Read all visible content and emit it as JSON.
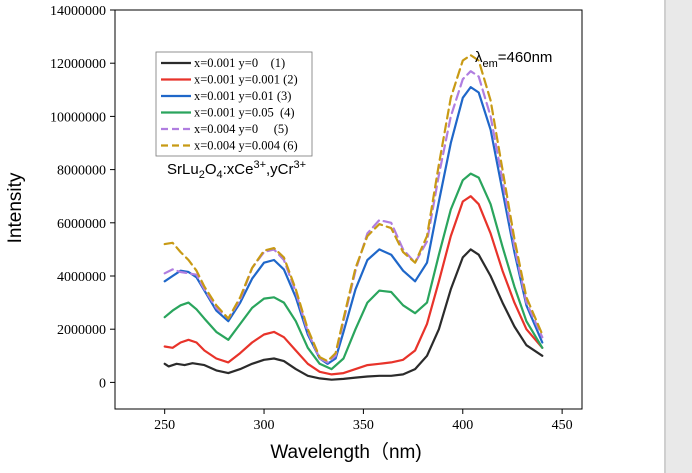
{
  "chart_data": {
    "type": "line",
    "xlabel": "Wavelength（nm)",
    "ylabel": "Intensity",
    "xlim": [
      225,
      460
    ],
    "ylim": [
      -1000000,
      14000000
    ],
    "xticks": [
      250,
      300,
      350,
      400,
      450
    ],
    "yticks": [
      0,
      2000000,
      4000000,
      6000000,
      8000000,
      10000000,
      12000000,
      14000000
    ],
    "annotations": {
      "compound": "SrLu2O4:xCe3+,yCr3+",
      "lambda": "λem=460nm"
    },
    "legend_position": "top-left",
    "grid": false,
    "series": [
      {
        "name": "x=0.001 y=0    (1)",
        "color": "#2b2b2b",
        "dash": "solid",
        "points": [
          [
            250,
            700000
          ],
          [
            252,
            600000
          ],
          [
            256,
            700000
          ],
          [
            260,
            650000
          ],
          [
            264,
            720000
          ],
          [
            270,
            650000
          ],
          [
            276,
            450000
          ],
          [
            282,
            350000
          ],
          [
            288,
            500000
          ],
          [
            294,
            700000
          ],
          [
            300,
            850000
          ],
          [
            305,
            900000
          ],
          [
            310,
            800000
          ],
          [
            316,
            500000
          ],
          [
            322,
            250000
          ],
          [
            328,
            150000
          ],
          [
            334,
            100000
          ],
          [
            340,
            130000
          ],
          [
            346,
            180000
          ],
          [
            352,
            220000
          ],
          [
            358,
            250000
          ],
          [
            364,
            250000
          ],
          [
            370,
            300000
          ],
          [
            376,
            500000
          ],
          [
            382,
            1000000
          ],
          [
            388,
            2000000
          ],
          [
            394,
            3500000
          ],
          [
            400,
            4700000
          ],
          [
            404,
            5000000
          ],
          [
            408,
            4800000
          ],
          [
            414,
            4000000
          ],
          [
            420,
            3000000
          ],
          [
            426,
            2100000
          ],
          [
            432,
            1400000
          ],
          [
            440,
            1000000
          ]
        ]
      },
      {
        "name": "x=0.001 y=0.001 (2)",
        "color": "#e8332a",
        "dash": "solid",
        "points": [
          [
            250,
            1350000
          ],
          [
            254,
            1300000
          ],
          [
            258,
            1500000
          ],
          [
            262,
            1600000
          ],
          [
            266,
            1500000
          ],
          [
            270,
            1200000
          ],
          [
            276,
            900000
          ],
          [
            282,
            750000
          ],
          [
            288,
            1100000
          ],
          [
            294,
            1500000
          ],
          [
            300,
            1800000
          ],
          [
            305,
            1900000
          ],
          [
            310,
            1700000
          ],
          [
            316,
            1200000
          ],
          [
            322,
            700000
          ],
          [
            328,
            400000
          ],
          [
            334,
            300000
          ],
          [
            340,
            350000
          ],
          [
            346,
            500000
          ],
          [
            352,
            650000
          ],
          [
            358,
            700000
          ],
          [
            364,
            750000
          ],
          [
            370,
            850000
          ],
          [
            376,
            1200000
          ],
          [
            382,
            2200000
          ],
          [
            388,
            3800000
          ],
          [
            394,
            5500000
          ],
          [
            400,
            6800000
          ],
          [
            404,
            7000000
          ],
          [
            408,
            6700000
          ],
          [
            414,
            5600000
          ],
          [
            420,
            4200000
          ],
          [
            426,
            3000000
          ],
          [
            432,
            2000000
          ],
          [
            440,
            1300000
          ]
        ]
      },
      {
        "name": "x=0.001 y=0.01 (3)",
        "color": "#1f67c9",
        "dash": "solid",
        "points": [
          [
            250,
            3800000
          ],
          [
            254,
            4000000
          ],
          [
            258,
            4200000
          ],
          [
            262,
            4150000
          ],
          [
            266,
            3950000
          ],
          [
            270,
            3450000
          ],
          [
            276,
            2700000
          ],
          [
            282,
            2300000
          ],
          [
            288,
            3000000
          ],
          [
            294,
            3900000
          ],
          [
            300,
            4500000
          ],
          [
            305,
            4600000
          ],
          [
            310,
            4250000
          ],
          [
            316,
            3200000
          ],
          [
            322,
            1800000
          ],
          [
            328,
            900000
          ],
          [
            332,
            700000
          ],
          [
            336,
            900000
          ],
          [
            340,
            1900000
          ],
          [
            346,
            3500000
          ],
          [
            352,
            4600000
          ],
          [
            358,
            5000000
          ],
          [
            364,
            4800000
          ],
          [
            370,
            4200000
          ],
          [
            376,
            3800000
          ],
          [
            382,
            4500000
          ],
          [
            388,
            6800000
          ],
          [
            394,
            9000000
          ],
          [
            400,
            10700000
          ],
          [
            404,
            11100000
          ],
          [
            408,
            10900000
          ],
          [
            414,
            9500000
          ],
          [
            420,
            7200000
          ],
          [
            426,
            4900000
          ],
          [
            432,
            2900000
          ],
          [
            440,
            1500000
          ]
        ]
      },
      {
        "name": "x=0.001 y=0.05  (4)",
        "color": "#2aa55d",
        "dash": "solid",
        "points": [
          [
            250,
            2450000
          ],
          [
            254,
            2700000
          ],
          [
            258,
            2900000
          ],
          [
            262,
            3000000
          ],
          [
            266,
            2750000
          ],
          [
            270,
            2400000
          ],
          [
            276,
            1900000
          ],
          [
            282,
            1600000
          ],
          [
            288,
            2200000
          ],
          [
            294,
            2800000
          ],
          [
            300,
            3150000
          ],
          [
            305,
            3200000
          ],
          [
            310,
            3000000
          ],
          [
            316,
            2300000
          ],
          [
            322,
            1300000
          ],
          [
            328,
            700000
          ],
          [
            334,
            500000
          ],
          [
            340,
            900000
          ],
          [
            346,
            2000000
          ],
          [
            352,
            3000000
          ],
          [
            358,
            3450000
          ],
          [
            364,
            3400000
          ],
          [
            370,
            2900000
          ],
          [
            376,
            2600000
          ],
          [
            382,
            3000000
          ],
          [
            388,
            4800000
          ],
          [
            394,
            6500000
          ],
          [
            400,
            7600000
          ],
          [
            404,
            7850000
          ],
          [
            408,
            7700000
          ],
          [
            414,
            6700000
          ],
          [
            420,
            5100000
          ],
          [
            426,
            3600000
          ],
          [
            432,
            2300000
          ],
          [
            440,
            1300000
          ]
        ]
      },
      {
        "name": "x=0.004 y=0     (5)",
        "color": "#b07ee0",
        "dash": "dash",
        "points": [
          [
            250,
            4100000
          ],
          [
            254,
            4250000
          ],
          [
            258,
            4150000
          ],
          [
            262,
            4100000
          ],
          [
            266,
            4050000
          ],
          [
            270,
            3500000
          ],
          [
            276,
            2800000
          ],
          [
            282,
            2400000
          ],
          [
            288,
            3100000
          ],
          [
            294,
            4300000
          ],
          [
            300,
            4900000
          ],
          [
            305,
            5000000
          ],
          [
            310,
            4600000
          ],
          [
            316,
            3400000
          ],
          [
            322,
            1900000
          ],
          [
            328,
            900000
          ],
          [
            332,
            750000
          ],
          [
            336,
            1000000
          ],
          [
            340,
            2300000
          ],
          [
            346,
            4200000
          ],
          [
            352,
            5600000
          ],
          [
            358,
            6100000
          ],
          [
            364,
            6000000
          ],
          [
            370,
            5000000
          ],
          [
            376,
            4500000
          ],
          [
            382,
            5300000
          ],
          [
            388,
            7800000
          ],
          [
            394,
            10000000
          ],
          [
            400,
            11400000
          ],
          [
            404,
            11700000
          ],
          [
            408,
            11500000
          ],
          [
            414,
            10000000
          ],
          [
            420,
            7600000
          ],
          [
            426,
            5100000
          ],
          [
            432,
            3000000
          ],
          [
            440,
            1700000
          ]
        ]
      },
      {
        "name": "x=0.004 y=0.004 (6)",
        "color": "#c89a14",
        "dash": "dash",
        "points": [
          [
            250,
            5200000
          ],
          [
            254,
            5250000
          ],
          [
            258,
            4900000
          ],
          [
            262,
            4600000
          ],
          [
            266,
            4200000
          ],
          [
            270,
            3600000
          ],
          [
            276,
            2900000
          ],
          [
            282,
            2400000
          ],
          [
            288,
            3200000
          ],
          [
            294,
            4300000
          ],
          [
            300,
            4950000
          ],
          [
            305,
            5050000
          ],
          [
            310,
            4700000
          ],
          [
            316,
            3500000
          ],
          [
            322,
            2000000
          ],
          [
            328,
            950000
          ],
          [
            332,
            800000
          ],
          [
            336,
            1100000
          ],
          [
            340,
            2400000
          ],
          [
            346,
            4300000
          ],
          [
            352,
            5500000
          ],
          [
            358,
            5950000
          ],
          [
            364,
            5800000
          ],
          [
            370,
            4900000
          ],
          [
            376,
            4500000
          ],
          [
            382,
            5500000
          ],
          [
            388,
            8200000
          ],
          [
            394,
            10700000
          ],
          [
            400,
            12100000
          ],
          [
            404,
            12300000
          ],
          [
            408,
            12100000
          ],
          [
            414,
            10600000
          ],
          [
            420,
            8000000
          ],
          [
            426,
            5400000
          ],
          [
            432,
            3200000
          ],
          [
            440,
            1800000
          ]
        ]
      }
    ]
  }
}
